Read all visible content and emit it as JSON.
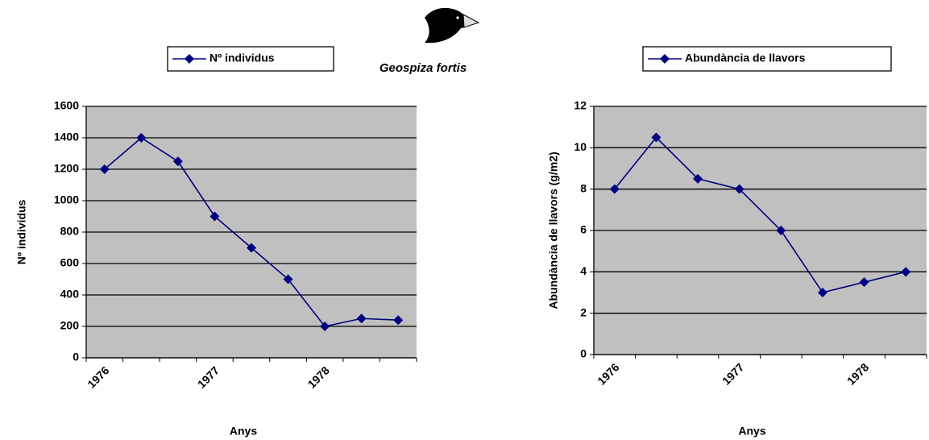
{
  "title": "Geospiza fortis",
  "chart_data": [
    {
      "type": "line",
      "x_label": "Anys",
      "y_label": "Nº individus",
      "categories": [
        "1976",
        null,
        null,
        "1977",
        null,
        null,
        "1978",
        null,
        null
      ],
      "series": [
        {
          "name": "Nº individus",
          "color": "#000080",
          "values": [
            1200,
            1400,
            1250,
            900,
            700,
            500,
            200,
            250,
            240
          ]
        }
      ],
      "ylim": [
        0,
        1600
      ],
      "yticks": [
        0,
        200,
        400,
        600,
        800,
        1000,
        1200,
        1400,
        1600
      ],
      "grid": true,
      "plot_background": "#c0c0c0",
      "legend_position": "top"
    },
    {
      "type": "line",
      "x_label": "Anys",
      "y_label": "Abundància de llavors (g/m2)",
      "categories": [
        "1976",
        null,
        null,
        "1977",
        null,
        null,
        "1978",
        null
      ],
      "series": [
        {
          "name": "Abundància de llavors",
          "color": "#000080",
          "values": [
            8,
            10.5,
            8.5,
            8,
            6,
            3,
            3.5,
            4
          ]
        }
      ],
      "ylim": [
        0,
        12
      ],
      "yticks": [
        0,
        2,
        4,
        6,
        8,
        10,
        12
      ],
      "grid": true,
      "plot_background": "#c0c0c0",
      "legend_position": "top"
    }
  ]
}
